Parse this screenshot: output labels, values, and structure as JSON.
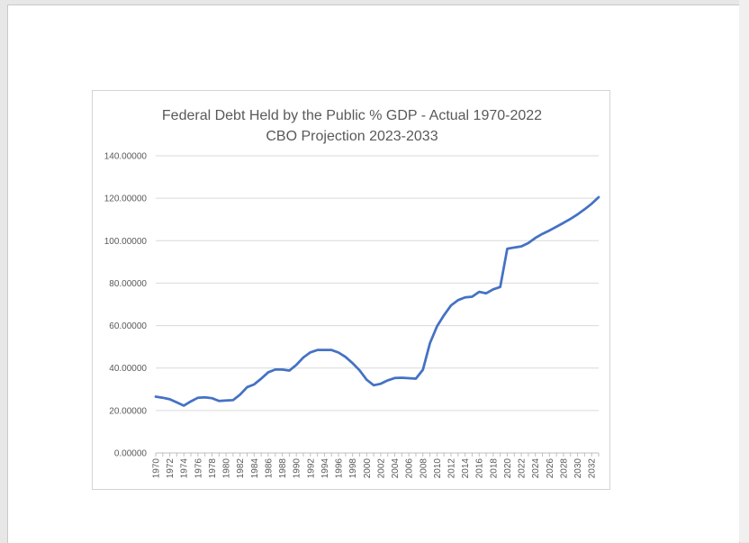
{
  "chart_data": {
    "type": "line",
    "title": "Federal Debt Held by the Public % GDP - Actual 1970-2022",
    "subtitle": "CBO Projection 2023-2033",
    "xlabel": "",
    "ylabel": "",
    "ylim": [
      0,
      140
    ],
    "y_ticks": [
      "0.00000",
      "20.00000",
      "40.00000",
      "60.00000",
      "80.00000",
      "100.00000",
      "120.00000",
      "140.00000"
    ],
    "x_tick_labels": [
      "1970",
      "1972",
      "1974",
      "1976",
      "1978",
      "1980",
      "1982",
      "1984",
      "1986",
      "1988",
      "1990",
      "1992",
      "1994",
      "1996",
      "1998",
      "2000",
      "2002",
      "2004",
      "2006",
      "2008",
      "2010",
      "2012",
      "2014",
      "2016",
      "2018",
      "2020",
      "2022",
      "2024",
      "2026",
      "2028",
      "2030",
      "2032"
    ],
    "grid": true,
    "legend": "none",
    "line_color": "#4472c4",
    "x": [
      1970,
      1971,
      1972,
      1973,
      1974,
      1975,
      1976,
      1977,
      1978,
      1979,
      1980,
      1981,
      1982,
      1983,
      1984,
      1985,
      1986,
      1987,
      1988,
      1989,
      1990,
      1991,
      1992,
      1993,
      1994,
      1995,
      1996,
      1997,
      1998,
      1999,
      2000,
      2001,
      2002,
      2003,
      2004,
      2005,
      2006,
      2007,
      2008,
      2009,
      2010,
      2011,
      2012,
      2013,
      2014,
      2015,
      2016,
      2017,
      2018,
      2019,
      2020,
      2021,
      2022,
      2023,
      2024,
      2025,
      2026,
      2027,
      2028,
      2029,
      2030,
      2031,
      2032,
      2033
    ],
    "series": [
      {
        "values": [
          26.5,
          26.0,
          25.3,
          23.8,
          22.3,
          24.3,
          26.0,
          26.2,
          25.8,
          24.5,
          24.7,
          24.9,
          27.5,
          31.0,
          32.3,
          35.0,
          38.0,
          39.3,
          39.3,
          38.8,
          41.5,
          45.0,
          47.4,
          48.5,
          48.5,
          48.5,
          47.3,
          45.2,
          42.3,
          38.9,
          34.5,
          31.9,
          32.6,
          34.2,
          35.3,
          35.4,
          35.2,
          35.0,
          39.2,
          51.7,
          59.6,
          64.9,
          69.5,
          72.0,
          73.3,
          73.6,
          75.9,
          75.2,
          77.1,
          78.2,
          96.2,
          96.8,
          97.3,
          98.9,
          101.3,
          103.2,
          104.8,
          106.6,
          108.4,
          110.3,
          112.4,
          114.8,
          117.4,
          120.5
        ]
      }
    ]
  }
}
